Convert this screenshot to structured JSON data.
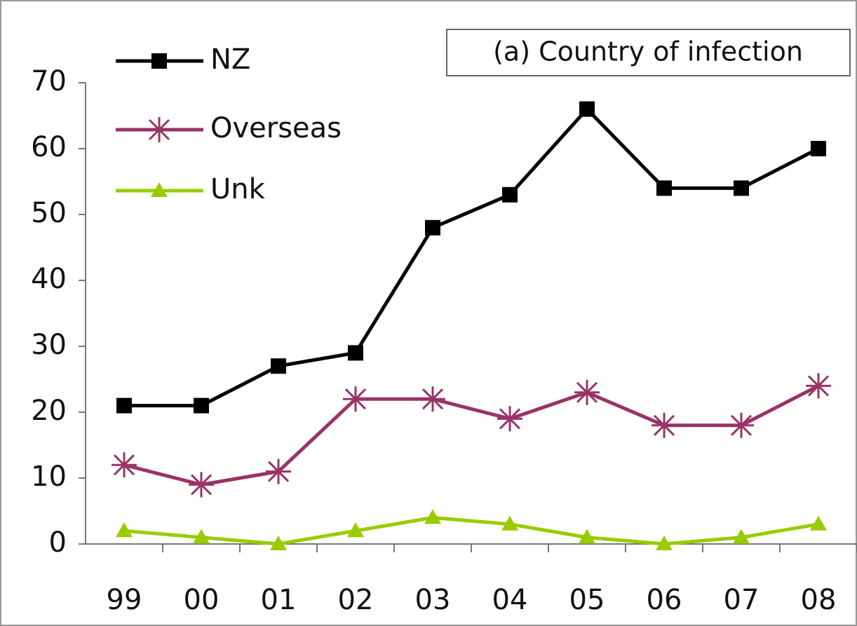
{
  "chart_data": {
    "type": "line",
    "title": "(a) Country of infection",
    "categories": [
      "99",
      "00",
      "01",
      "02",
      "03",
      "04",
      "05",
      "06",
      "07",
      "08"
    ],
    "series": [
      {
        "name": "NZ",
        "color": "#000000",
        "marker": "square",
        "values": [
          21,
          21,
          27,
          29,
          48,
          53,
          66,
          54,
          54,
          60
        ]
      },
      {
        "name": "Overseas",
        "color": "#993366",
        "marker": "asterisk",
        "values": [
          12,
          9,
          11,
          22,
          22,
          19,
          23,
          18,
          18,
          24
        ]
      },
      {
        "name": "Unk",
        "color": "#99cc00",
        "marker": "triangle",
        "values": [
          2,
          1,
          0,
          2,
          4,
          3,
          1,
          0,
          1,
          3
        ]
      }
    ],
    "ylim": [
      0,
      70
    ],
    "yticks": [
      0,
      10,
      20,
      30,
      40,
      50,
      60,
      70
    ],
    "grid": false
  }
}
